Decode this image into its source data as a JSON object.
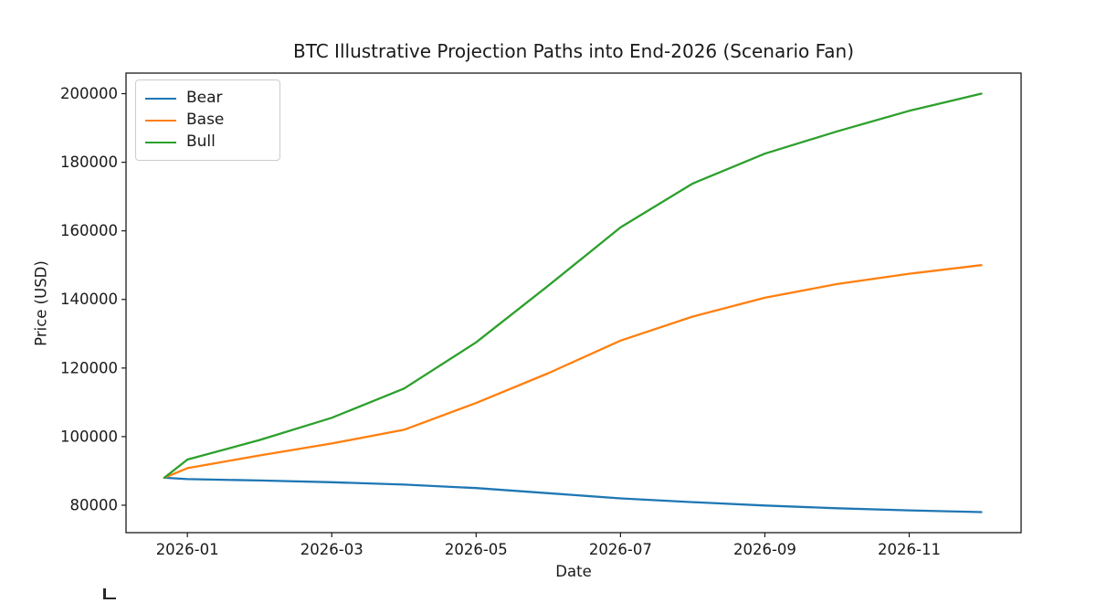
{
  "chart_data": {
    "type": "line",
    "title": "BTC Illustrative Projection Paths into End-2026 (Scenario Fan)",
    "xlabel": "Date",
    "ylabel": "Price (USD)",
    "grid": false,
    "legend_position": "upper left",
    "x_dates": [
      "2025-12-20",
      "2026-01-01",
      "2026-02-01",
      "2026-03-01",
      "2026-04-01",
      "2026-05-01",
      "2026-06-01",
      "2026-07-01",
      "2026-08-01",
      "2026-09-01",
      "2026-10-01",
      "2026-11-01",
      "2026-12-01"
    ],
    "x_months_from_jan2026": [
      -0.32,
      0,
      1,
      2,
      3,
      4,
      5,
      6,
      7,
      8,
      9,
      10,
      11
    ],
    "xlim_months": [
      -0.85,
      11.55
    ],
    "ylim": [
      72000,
      206000
    ],
    "yticks": [
      80000,
      100000,
      120000,
      140000,
      160000,
      180000,
      200000
    ],
    "ytick_labels": [
      "80000",
      "100000",
      "120000",
      "140000",
      "160000",
      "180000",
      "200000"
    ],
    "xtick_months": [
      0,
      2,
      4,
      6,
      8,
      10
    ],
    "xtick_labels": [
      "2026-01",
      "2026-03",
      "2026-05",
      "2026-07",
      "2026-09",
      "2026-11"
    ],
    "axis_color": "#1a1a1a",
    "series": [
      {
        "name": "Bear",
        "color": "#1f77b4",
        "values": [
          88000,
          87600,
          87200,
          86700,
          86000,
          85000,
          83500,
          82000,
          80900,
          79900,
          79100,
          78500,
          78000
        ]
      },
      {
        "name": "Base",
        "color": "#ff7f0e",
        "values": [
          88000,
          90800,
          94500,
          98000,
          102000,
          109800,
          118500,
          128000,
          135000,
          140500,
          144500,
          147500,
          150000
        ]
      },
      {
        "name": "Bull",
        "color": "#2ca02c",
        "values": [
          88000,
          93300,
          99000,
          105500,
          114000,
          127500,
          144000,
          161000,
          173800,
          182500,
          189000,
          195000,
          200000
        ]
      }
    ]
  }
}
